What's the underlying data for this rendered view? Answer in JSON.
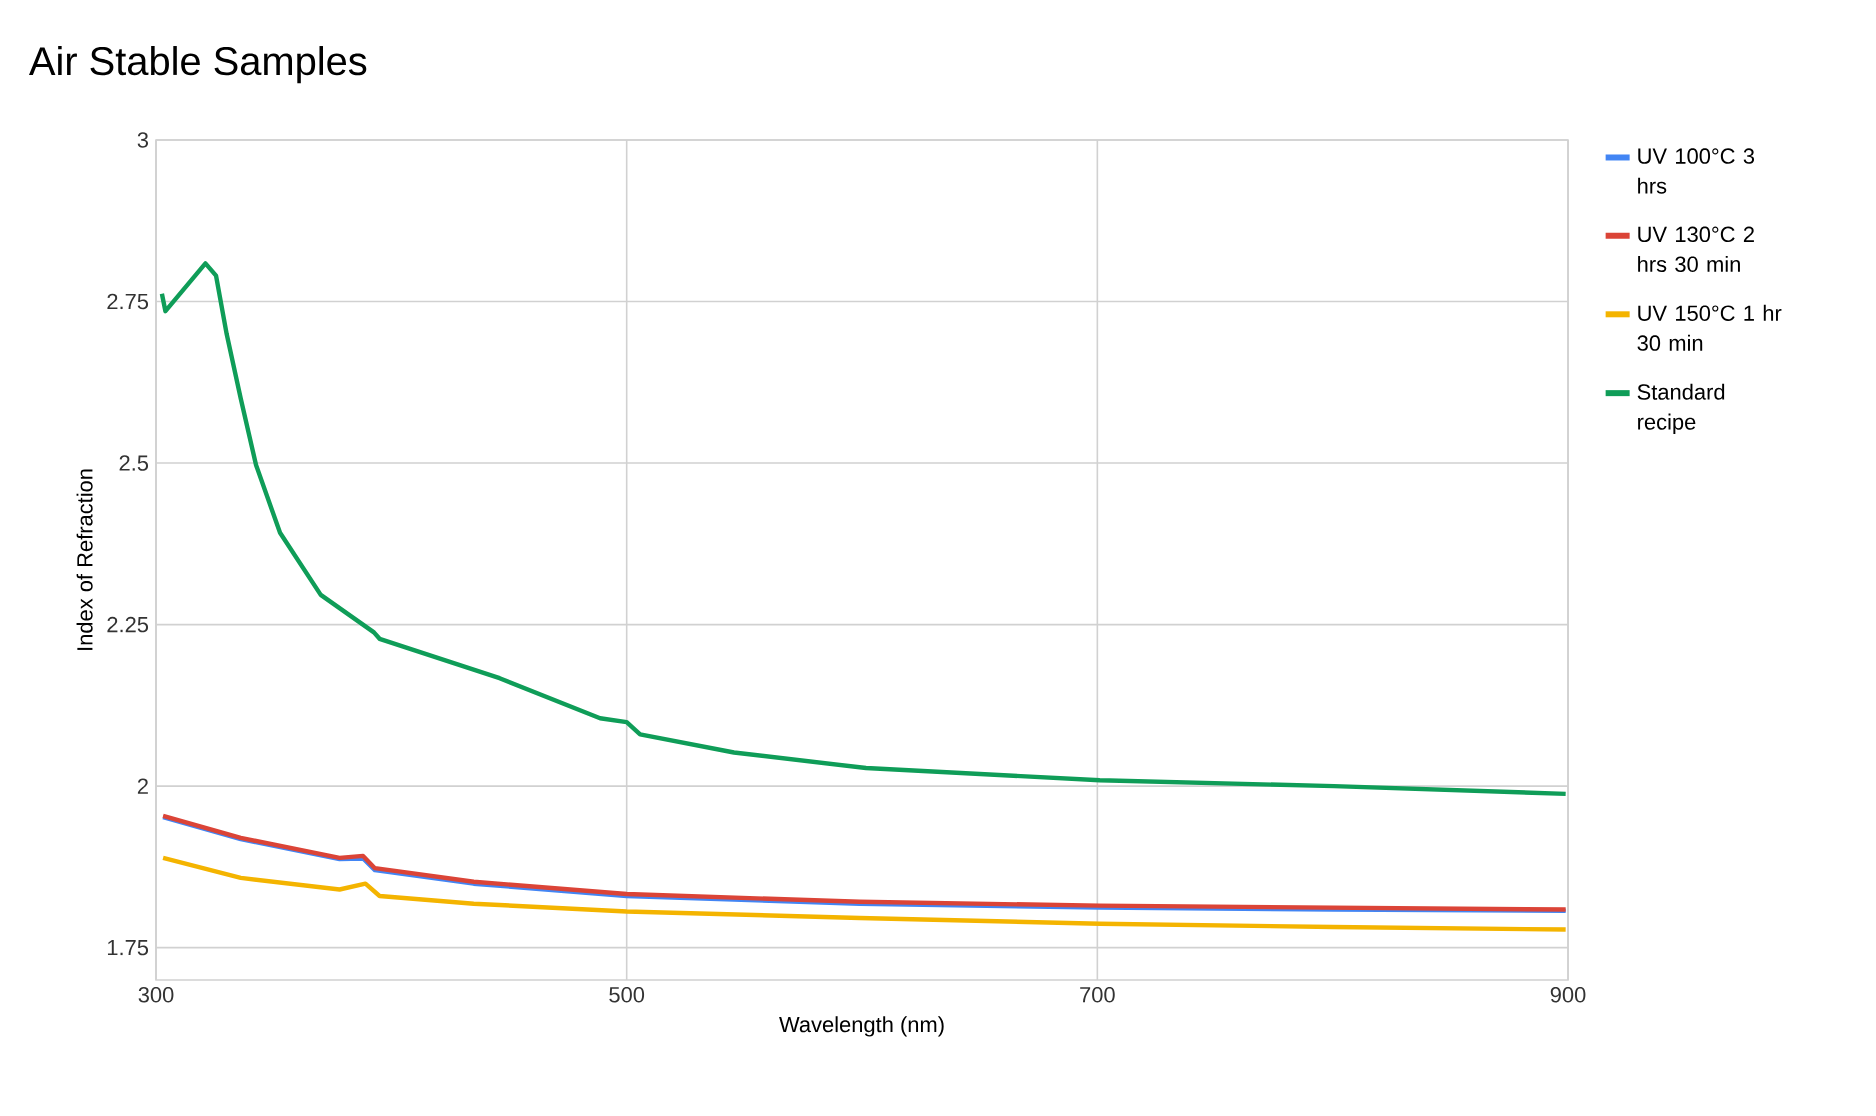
{
  "chart_data": {
    "type": "line",
    "title": "Air Stable Samples",
    "xlabel": "Wavelength (nm)",
    "ylabel": "Index of Refraction",
    "xlim": [
      300,
      900
    ],
    "xticks": [
      300,
      500,
      700,
      900
    ],
    "ylim": [
      1.7,
      3
    ],
    "yticks": [
      1.75,
      2,
      2.25,
      2.5,
      2.75,
      3
    ],
    "grid": true,
    "legend": "right",
    "line_style": "solid",
    "marker": "none",
    "series": [
      {
        "name": "UV 100°C 3 hrs",
        "color": "#4285f4",
        "x": [
          303,
          336,
          378,
          388,
          393,
          435,
          500,
          599,
          701,
          800,
          899
        ],
        "values": [
          1.952,
          1.918,
          1.887,
          1.888,
          1.87,
          1.849,
          1.83,
          1.818,
          1.812,
          1.809,
          1.807
        ]
      },
      {
        "name": "UV 130°C 2 hrs 30 min",
        "color": "#db4437",
        "x": [
          303,
          336,
          378,
          388,
          393,
          435,
          500,
          599,
          701,
          800,
          899
        ],
        "values": [
          1.954,
          1.92,
          1.889,
          1.892,
          1.873,
          1.852,
          1.833,
          1.821,
          1.815,
          1.812,
          1.809
        ]
      },
      {
        "name": "UV 150°C 1 hr 30 min",
        "color": "#f4b400",
        "x": [
          303,
          336,
          378,
          389,
          395,
          435,
          500,
          599,
          701,
          800,
          899
        ],
        "values": [
          1.889,
          1.858,
          1.84,
          1.849,
          1.83,
          1.818,
          1.806,
          1.796,
          1.787,
          1.782,
          1.778
        ]
      },
      {
        "name": "Standard recipe",
        "color": "#0f9d58",
        "x": [
          302.5,
          304,
          321,
          325.5,
          330,
          336,
          342.5,
          352.7,
          370,
          392.6,
          395,
          446,
          488.7,
          500,
          505.7,
          545.6,
          601.7,
          701,
          800.6,
          899
        ],
        "values": [
          2.762,
          2.735,
          2.809,
          2.79,
          2.7,
          2.6,
          2.497,
          2.392,
          2.296,
          2.238,
          2.228,
          2.167,
          2.105,
          2.099,
          2.08,
          2.052,
          2.028,
          2.009,
          2.0,
          1.988
        ]
      }
    ]
  }
}
